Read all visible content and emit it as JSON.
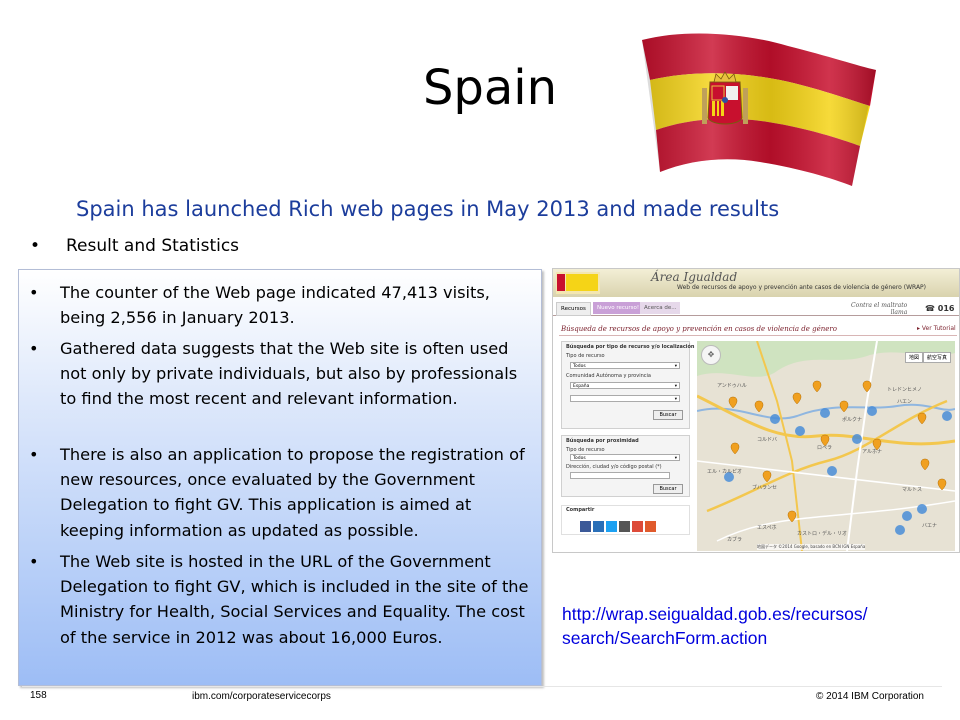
{
  "slide": {
    "title": "Spain",
    "subtitle": "Spain has launched Rich web pages in May 2013 and made results",
    "top_bullet": "Result and Statistics",
    "bullets": [
      "The counter of the Web page indicated 47,413 visits, being 2,556 in January 2013.",
      "Gathered data suggests that the Web site is often used not only by private individuals, but also by professionals to find the most recent and relevant information.",
      "There is also an application to propose the registration of new resources, once evaluated by the Government Delegation to fight GV. This application is aimed at keeping information as updated as possible.",
      "The Web site is hosted in the URL of the Government Delegation to fight GV, which is included in the site of the Ministry for Health, Social Services and Equality. The cost of the service in 2012 was about 16,000 Euros."
    ],
    "url_line1": "http://wrap.seigualdad.gob.es/recursos/",
    "url_line2": "search/SearchForm.action",
    "bullet_glyph": "•"
  },
  "footer": {
    "page_number": "158",
    "site": "ibm.com/corporateservicecorps",
    "copyright": "© 2014 IBM Corporation"
  },
  "website": {
    "header_title": "Área Igualdad",
    "header_sub": "Web de recursos de apoyo y prevención ante casos de violencia de género (WRAP)",
    "tabs": [
      "Recursos",
      "Nuevo recurso!",
      "Acerca de..."
    ],
    "contra_line1": "Contra el maltrato",
    "contra_line2": "llama",
    "phone": "016",
    "section_title": "Búsqueda de recursos de apoyo y prevención en casos de violencia de género",
    "tutorial_link": "Ver Tutorial",
    "panel1": {
      "title": "Búsqueda por tipo de recurso y/o localización",
      "label_tipo": "Tipo de recurso",
      "tipo_value": "Todos",
      "label_comunidad": "Comunidad Autónoma y provincia",
      "comunidad_value": "España",
      "provincia_value": "",
      "button": "Buscar"
    },
    "panel2": {
      "title": "Búsqueda por proximidad",
      "label_tipo": "Tipo de recurso",
      "tipo_value": "Todos",
      "label_dir": "Dirección, ciudad y/o código postal (*)",
      "dir_value": "",
      "button": "Buscar"
    },
    "share_label": "Compartir",
    "share_icon_colors": [
      "#3b5998",
      "#2a6fb8",
      "#1da1f2",
      "#555555",
      "#dd4b39",
      "#e05a2c"
    ],
    "map_buttons": [
      "地図",
      "航空写真"
    ],
    "map_places": [
      "アンドゥハル",
      "ハエン",
      "コルドバ",
      "ロペラ",
      "ブハランセ",
      "エル・カルピオ",
      "アルホナ",
      "ポルクナ",
      "マルトス",
      "カブラ",
      "エスペホ",
      "トレドンヒメノ",
      "カストロ・デル・リオ",
      "バエナ"
    ],
    "map_footer": "地図データ ©2014 Google, basado en BCN IGN España",
    "colors": {
      "accent_maroon": "#7a1f2b",
      "tab_purple": "#c9a0d7",
      "road": "#f3c74e",
      "pin": "#f0a020",
      "cluster": "#4a8ed8"
    }
  },
  "flag": {
    "red": "#c8102e",
    "yellow": "#f5d417",
    "type": "spain-flag-waving"
  }
}
